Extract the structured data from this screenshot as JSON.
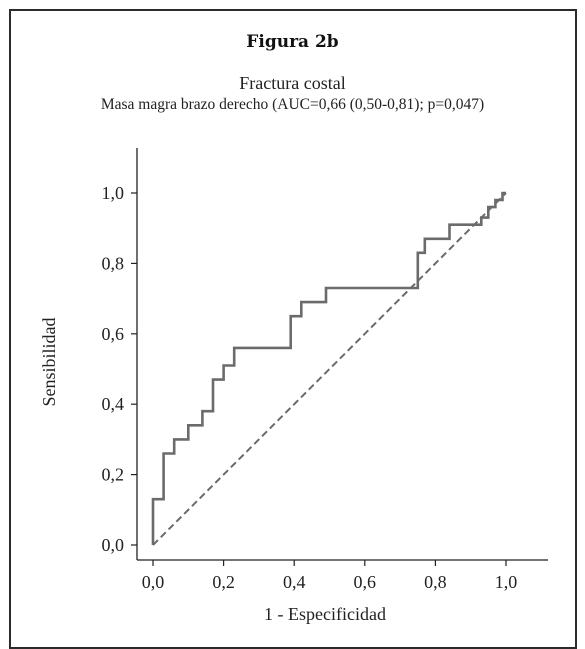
{
  "figure_label": "Figura 2b",
  "chart_data": {
    "type": "line",
    "title": "Fractura costal",
    "subtitle": "Masa magra brazo derecho (AUC=0,66 (0,50-0,81); p=0,047)",
    "xlabel": "1 - Especificidad",
    "ylabel": "Sensibilidad",
    "xlim": [
      0,
      1
    ],
    "ylim": [
      0,
      1
    ],
    "xticks": [
      "0,0",
      "0,2",
      "0,4",
      "0,6",
      "0,8",
      "1,0"
    ],
    "yticks": [
      "0,0",
      "0,2",
      "0,4",
      "0,6",
      "0,8",
      "1,0"
    ],
    "grid": false,
    "series": [
      {
        "color": "#6b6b6b",
        "style": "solid",
        "x": [
          0.0,
          0.0,
          0.03,
          0.03,
          0.06,
          0.06,
          0.1,
          0.1,
          0.14,
          0.14,
          0.17,
          0.17,
          0.2,
          0.2,
          0.23,
          0.23,
          0.28,
          0.28,
          0.39,
          0.39,
          0.42,
          0.42,
          0.49,
          0.49,
          0.75,
          0.75,
          0.77,
          0.77,
          0.8,
          0.8,
          0.84,
          0.84,
          0.93,
          0.93,
          0.95,
          0.95,
          0.97,
          0.97,
          0.99,
          0.99,
          1.0
        ],
        "y": [
          0.0,
          0.13,
          0.13,
          0.26,
          0.26,
          0.3,
          0.3,
          0.34,
          0.34,
          0.38,
          0.38,
          0.47,
          0.47,
          0.51,
          0.51,
          0.56,
          0.56,
          0.56,
          0.56,
          0.65,
          0.65,
          0.69,
          0.69,
          0.73,
          0.73,
          0.83,
          0.83,
          0.87,
          0.87,
          0.87,
          0.87,
          0.91,
          0.91,
          0.93,
          0.93,
          0.96,
          0.96,
          0.98,
          0.98,
          1.0,
          1.0
        ]
      },
      {
        "color": "#6b6b6b",
        "style": "dashed",
        "x": [
          0,
          1
        ],
        "y": [
          0,
          1
        ]
      }
    ]
  }
}
